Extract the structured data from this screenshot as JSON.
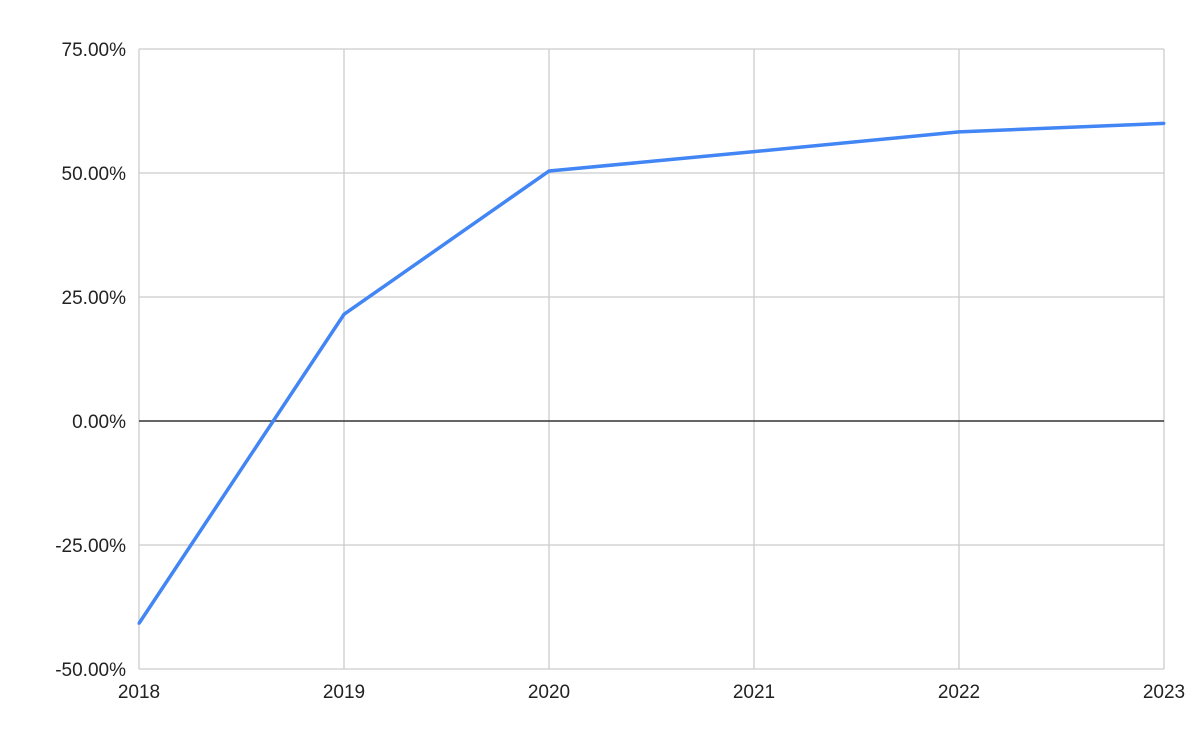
{
  "chart_data": {
    "type": "line",
    "title": "",
    "xlabel": "",
    "ylabel": "",
    "categories": [
      "2018",
      "2019",
      "2020",
      "2021",
      "2022",
      "2023"
    ],
    "series": [
      {
        "values": [
          -40.8,
          21.5,
          50.4,
          54.3,
          58.3,
          60.0
        ],
        "color": "#4285F4"
      }
    ],
    "ylim": [
      -50,
      75
    ],
    "yticks": [
      -50,
      -25,
      0,
      25,
      50,
      75
    ],
    "ytick_labels": [
      "-50.00%",
      "-25.00%",
      "0.00%",
      "25.00%",
      "50.00%",
      "75.00%"
    ],
    "y_unit": "percent",
    "grid": true,
    "legend": "none",
    "colors": {
      "line": "#4285F4",
      "grid": "#cccccc",
      "zero_line": "#333333"
    }
  }
}
